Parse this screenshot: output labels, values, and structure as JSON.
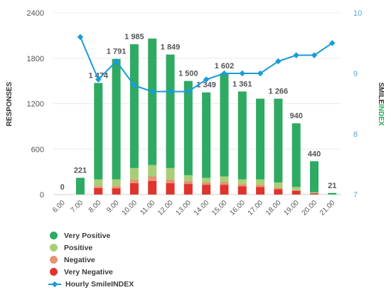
{
  "chart_data": {
    "type": "bar",
    "x": [
      "6.00",
      "7.00",
      "8.00",
      "9.00",
      "10.00",
      "11.00",
      "12.00",
      "13.00",
      "14.00",
      "15.00",
      "16.00",
      "17.00",
      "18.00",
      "19.00",
      "20.00",
      "21.00"
    ],
    "totals": [
      0,
      221,
      1474,
      1791,
      1985,
      2060,
      1849,
      1500,
      1349,
      1602,
      1361,
      1266,
      1266,
      940,
      440,
      21
    ],
    "total_labels": [
      "0",
      "221",
      "1 474",
      "1 791",
      "1 985",
      "",
      "1 849",
      "1 500",
      "1 349",
      "1 602",
      "1 361",
      "",
      "1 266",
      "940",
      "440",
      "21"
    ],
    "series": [
      {
        "name": "Very Positive",
        "color": "#2eaa62",
        "values": [
          0,
          221,
          1274,
          1591,
          1635,
          1670,
          1499,
          1245,
          1129,
          1362,
          1161,
          1066,
          1106,
          840,
          410,
          21
        ]
      },
      {
        "name": "Positive",
        "color": "#a8cf77",
        "values": [
          0,
          0,
          90,
          90,
          150,
          150,
          150,
          75,
          60,
          75,
          60,
          70,
          70,
          40,
          10,
          0
        ]
      },
      {
        "name": "Negative",
        "color": "#e39473",
        "values": [
          0,
          0,
          25,
          30,
          50,
          60,
          50,
          40,
          30,
          35,
          30,
          30,
          20,
          10,
          5,
          0
        ]
      },
      {
        "name": "Very Negative",
        "color": "#e0332b",
        "values": [
          0,
          0,
          85,
          80,
          150,
          180,
          150,
          140,
          130,
          130,
          110,
          100,
          70,
          50,
          15,
          0
        ]
      }
    ],
    "line": {
      "name": "Hourly SmileINDEX",
      "color": "#1a9bd7",
      "values": [
        null,
        9.6,
        8.9,
        9.2,
        8.8,
        8.7,
        8.7,
        8.7,
        8.9,
        9.0,
        9.0,
        9.0,
        9.2,
        9.3,
        9.3,
        9.5
      ]
    },
    "ylabel": "RESPONSES",
    "y2label_prefix": "SMILE",
    "y2label_suffix": "INDEX",
    "ylim": [
      0,
      2400
    ],
    "yticks": [
      "0",
      "600",
      "1200",
      "1800",
      "2400"
    ],
    "y2lim": [
      7,
      10
    ],
    "y2ticks": [
      "7",
      "8",
      "9",
      "10"
    ],
    "grid": true,
    "legend_position": "bottom-left"
  }
}
